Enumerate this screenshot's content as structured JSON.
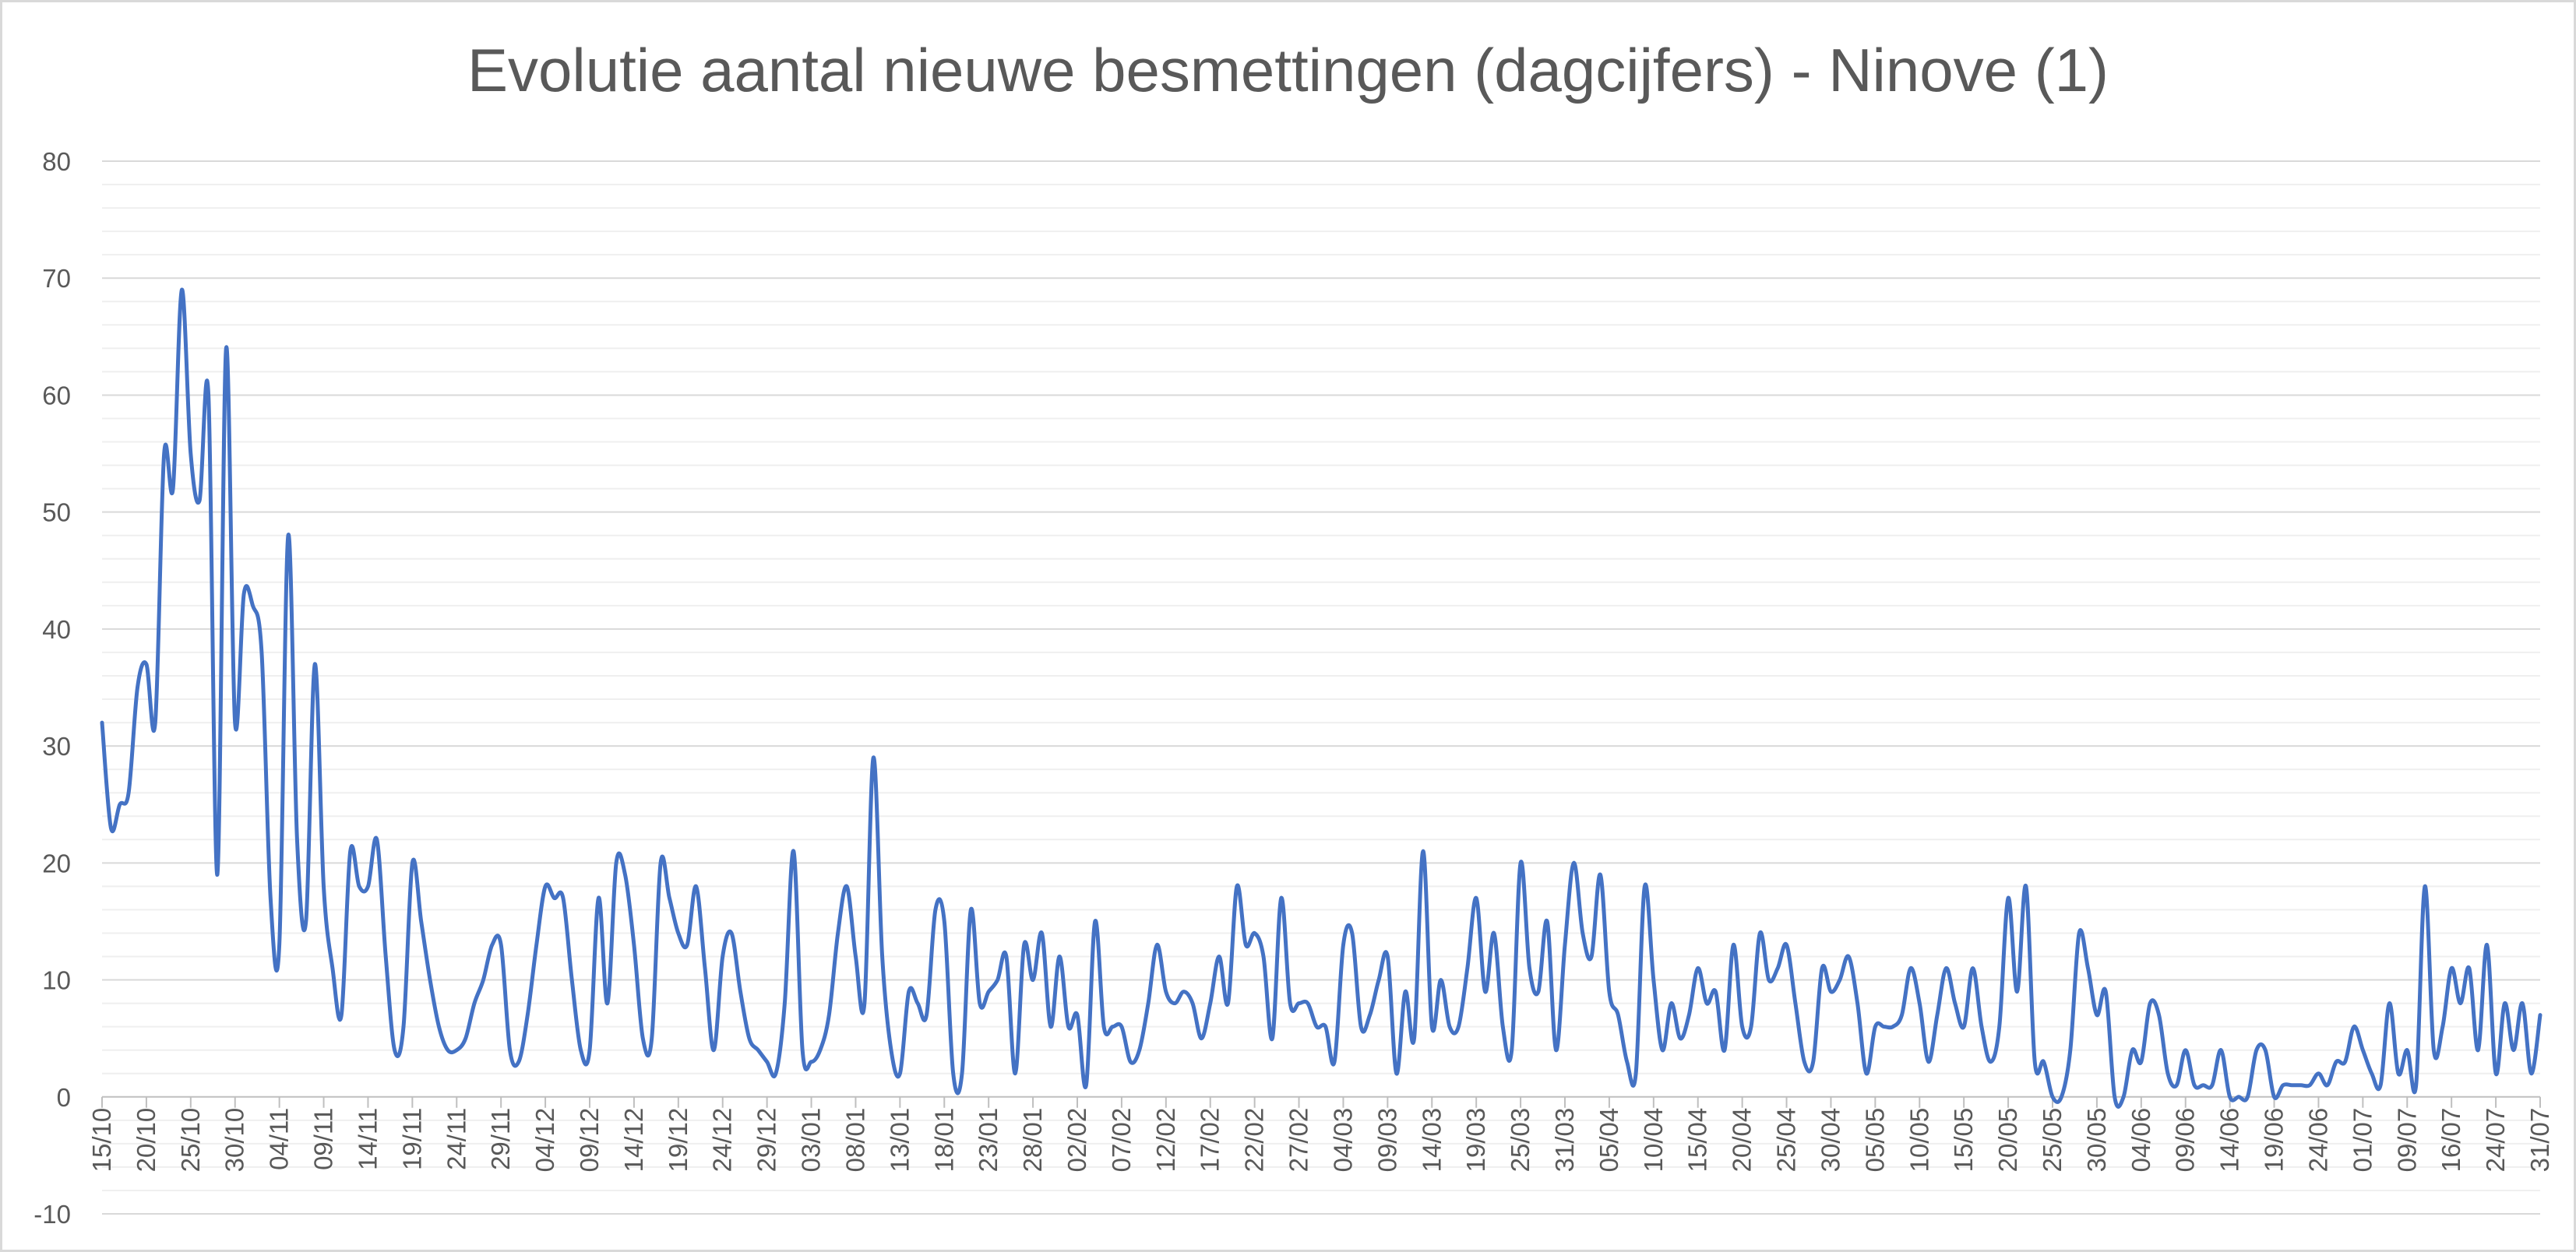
{
  "chart_data": {
    "type": "line",
    "title": "Evolutie aantal nieuwe besmettingen (dagcijfers) - Ninove (1)",
    "xlabel": "",
    "ylabel": "",
    "ylim": [
      -10,
      80
    ],
    "y_ticks": [
      -10,
      0,
      10,
      20,
      30,
      40,
      50,
      60,
      70,
      80
    ],
    "major_grid": true,
    "minor_grid": true,
    "legend": "none",
    "x_tick_labels": [
      "15/10",
      "20/10",
      "25/10",
      "30/10",
      "04/11",
      "09/11",
      "14/11",
      "19/11",
      "24/11",
      "29/11",
      "04/12",
      "09/12",
      "14/12",
      "19/12",
      "24/12",
      "29/12",
      "03/01",
      "08/01",
      "13/01",
      "18/01",
      "23/01",
      "28/01",
      "02/02",
      "07/02",
      "12/02",
      "17/02",
      "22/02",
      "27/02",
      "04/03",
      "09/03",
      "14/03",
      "19/03",
      "25/03",
      "31/03",
      "05/04",
      "10/04",
      "15/04",
      "20/04",
      "25/04",
      "30/04",
      "05/05",
      "10/05",
      "15/05",
      "20/05",
      "25/05",
      "30/05",
      "04/06",
      "09/06",
      "14/06",
      "19/06",
      "24/06",
      "01/07",
      "09/07",
      "16/07",
      "24/07",
      "31/07"
    ],
    "series": [
      {
        "color": "#4472c4",
        "values": [
          32,
          23,
          25,
          26,
          35,
          37,
          32,
          55,
          52,
          69,
          55,
          51,
          60,
          19,
          64,
          32,
          43,
          42,
          38,
          17,
          13,
          48,
          22,
          15,
          37,
          18,
          11,
          7,
          21,
          18,
          18,
          22,
          12,
          4,
          6,
          20,
          15,
          10,
          6,
          4,
          4,
          5,
          8,
          10,
          13,
          13,
          4,
          3,
          7,
          13,
          18,
          17,
          17,
          10,
          4,
          4,
          17,
          8,
          20,
          19,
          13,
          5,
          5,
          20,
          17,
          14,
          13,
          18,
          11,
          4,
          12,
          14,
          9,
          5,
          4,
          3,
          2,
          8,
          21,
          4,
          3,
          4,
          7,
          14,
          18,
          12,
          8,
          29,
          12,
          4,
          2,
          9,
          8,
          7,
          16,
          15,
          2,
          2,
          16,
          8,
          9,
          10,
          12,
          2,
          13,
          10,
          14,
          6,
          12,
          6,
          7,
          1,
          15,
          6,
          6,
          6,
          3,
          4,
          8,
          13,
          9,
          8,
          9,
          8,
          5,
          8,
          12,
          8,
          18,
          13,
          14,
          12,
          5,
          17,
          8,
          8,
          8,
          6,
          6,
          3,
          13,
          14,
          6,
          7,
          10,
          12,
          2,
          9,
          5,
          21,
          6,
          10,
          6,
          6,
          11,
          17,
          9,
          14,
          6,
          4,
          20,
          11,
          9,
          15,
          4,
          13,
          20,
          14,
          12,
          19,
          9,
          7,
          3,
          2,
          18,
          10,
          4,
          8,
          5,
          7,
          11,
          8,
          9,
          4,
          13,
          6,
          6,
          14,
          10,
          11,
          13,
          8,
          3,
          3,
          11,
          9,
          10,
          12,
          8,
          2,
          6,
          6,
          6,
          7,
          11,
          8,
          3,
          7,
          11,
          8,
          6,
          11,
          6,
          3,
          6,
          17,
          9,
          18,
          3,
          3,
          0,
          0,
          4,
          14,
          11,
          7,
          9,
          0,
          0,
          4,
          3,
          8,
          7,
          2,
          1,
          4,
          1,
          1,
          1,
          4,
          0,
          0,
          0,
          4,
          4,
          0,
          1,
          1,
          1,
          1,
          2,
          1,
          3,
          3,
          6,
          4,
          2,
          1,
          8,
          2,
          4,
          1,
          18,
          4,
          6,
          11,
          8,
          11,
          4,
          13,
          2,
          8,
          4,
          8,
          2,
          7
        ]
      }
    ]
  }
}
